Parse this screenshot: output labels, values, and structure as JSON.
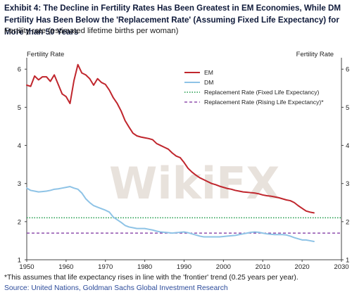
{
  "header": {
    "title": "Exhibit 4: The Decline in Fertility Rates Has Been Greatest in EM Economies, While DM Fertility Has Been Below the 'Replacement Rate' (Assuming Fixed Life Expectancy) for More than 50 Years",
    "subtitle": "Fertility rate (estimated lifetime births per woman)"
  },
  "footer": {
    "footnote": "*This assumes that life expectancy rises in line with the 'frontier' trend (0.25 years per year).",
    "source": "Source: United Nations, Goldman Sachs Global Investment Research"
  },
  "watermark": {
    "text": "WikiFX"
  },
  "colors": {
    "em": "#c0262d",
    "dm": "#8ec3e6",
    "fixed": "#1f9a4a",
    "rising": "#7a2e9e",
    "watermark": "#e8e2dc"
  },
  "chart_data": {
    "type": "line",
    "title": "",
    "ylabel_left": "Fertility Rate",
    "ylabel_right": "Fertility Rate",
    "xlim": [
      1950,
      2030
    ],
    "ylim": [
      1,
      6.3
    ],
    "xticks": [
      1950,
      1960,
      1970,
      1980,
      1990,
      2000,
      2010,
      2020,
      2030
    ],
    "yticks": [
      1,
      2,
      3,
      4,
      5,
      6
    ],
    "legend_position": "top-right",
    "series": [
      {
        "name": "EM",
        "style": "solid",
        "points": [
          [
            1950,
            5.58
          ],
          [
            1951,
            5.55
          ],
          [
            1952,
            5.82
          ],
          [
            1953,
            5.72
          ],
          [
            1954,
            5.8
          ],
          [
            1955,
            5.8
          ],
          [
            1956,
            5.68
          ],
          [
            1957,
            5.85
          ],
          [
            1958,
            5.6
          ],
          [
            1959,
            5.35
          ],
          [
            1960,
            5.28
          ],
          [
            1961,
            5.1
          ],
          [
            1962,
            5.7
          ],
          [
            1963,
            6.12
          ],
          [
            1964,
            5.9
          ],
          [
            1965,
            5.85
          ],
          [
            1966,
            5.75
          ],
          [
            1967,
            5.58
          ],
          [
            1968,
            5.75
          ],
          [
            1969,
            5.65
          ],
          [
            1970,
            5.6
          ],
          [
            1971,
            5.45
          ],
          [
            1972,
            5.25
          ],
          [
            1973,
            5.1
          ],
          [
            1974,
            4.9
          ],
          [
            1975,
            4.65
          ],
          [
            1976,
            4.48
          ],
          [
            1977,
            4.32
          ],
          [
            1978,
            4.25
          ],
          [
            1979,
            4.22
          ],
          [
            1980,
            4.2
          ],
          [
            1981,
            4.18
          ],
          [
            1982,
            4.15
          ],
          [
            1983,
            4.05
          ],
          [
            1984,
            4.0
          ],
          [
            1985,
            3.95
          ],
          [
            1986,
            3.9
          ],
          [
            1987,
            3.8
          ],
          [
            1988,
            3.72
          ],
          [
            1989,
            3.68
          ],
          [
            1990,
            3.55
          ],
          [
            1991,
            3.4
          ],
          [
            1992,
            3.3
          ],
          [
            1993,
            3.22
          ],
          [
            1994,
            3.15
          ],
          [
            1995,
            3.1
          ],
          [
            1996,
            3.05
          ],
          [
            1997,
            3.0
          ],
          [
            1998,
            2.97
          ],
          [
            1999,
            2.93
          ],
          [
            2000,
            2.9
          ],
          [
            2001,
            2.87
          ],
          [
            2002,
            2.85
          ],
          [
            2003,
            2.82
          ],
          [
            2004,
            2.8
          ],
          [
            2005,
            2.78
          ],
          [
            2006,
            2.77
          ],
          [
            2007,
            2.76
          ],
          [
            2008,
            2.75
          ],
          [
            2009,
            2.73
          ],
          [
            2010,
            2.7
          ],
          [
            2011,
            2.68
          ],
          [
            2012,
            2.67
          ],
          [
            2013,
            2.65
          ],
          [
            2014,
            2.63
          ],
          [
            2015,
            2.6
          ],
          [
            2016,
            2.57
          ],
          [
            2017,
            2.55
          ],
          [
            2018,
            2.5
          ],
          [
            2019,
            2.42
          ],
          [
            2020,
            2.35
          ],
          [
            2021,
            2.28
          ],
          [
            2022,
            2.25
          ],
          [
            2023,
            2.23
          ]
        ]
      },
      {
        "name": "DM",
        "style": "solid",
        "points": [
          [
            1950,
            2.88
          ],
          [
            1951,
            2.82
          ],
          [
            1952,
            2.8
          ],
          [
            1953,
            2.78
          ],
          [
            1954,
            2.79
          ],
          [
            1955,
            2.8
          ],
          [
            1956,
            2.82
          ],
          [
            1957,
            2.85
          ],
          [
            1958,
            2.86
          ],
          [
            1959,
            2.88
          ],
          [
            1960,
            2.9
          ],
          [
            1961,
            2.92
          ],
          [
            1962,
            2.88
          ],
          [
            1963,
            2.85
          ],
          [
            1964,
            2.75
          ],
          [
            1965,
            2.6
          ],
          [
            1966,
            2.5
          ],
          [
            1967,
            2.42
          ],
          [
            1968,
            2.38
          ],
          [
            1969,
            2.34
          ],
          [
            1970,
            2.3
          ],
          [
            1971,
            2.25
          ],
          [
            1972,
            2.12
          ],
          [
            1973,
            2.05
          ],
          [
            1974,
            1.98
          ],
          [
            1975,
            1.9
          ],
          [
            1976,
            1.86
          ],
          [
            1977,
            1.84
          ],
          [
            1978,
            1.82
          ],
          [
            1979,
            1.82
          ],
          [
            1980,
            1.82
          ],
          [
            1981,
            1.8
          ],
          [
            1982,
            1.78
          ],
          [
            1983,
            1.75
          ],
          [
            1984,
            1.73
          ],
          [
            1985,
            1.72
          ],
          [
            1986,
            1.71
          ],
          [
            1987,
            1.7
          ],
          [
            1988,
            1.71
          ],
          [
            1989,
            1.72
          ],
          [
            1990,
            1.73
          ],
          [
            1991,
            1.71
          ],
          [
            1992,
            1.68
          ],
          [
            1993,
            1.65
          ],
          [
            1994,
            1.62
          ],
          [
            1995,
            1.6
          ],
          [
            1996,
            1.6
          ],
          [
            1997,
            1.6
          ],
          [
            1998,
            1.6
          ],
          [
            1999,
            1.6
          ],
          [
            2000,
            1.61
          ],
          [
            2001,
            1.62
          ],
          [
            2002,
            1.63
          ],
          [
            2003,
            1.64
          ],
          [
            2004,
            1.66
          ],
          [
            2005,
            1.68
          ],
          [
            2006,
            1.7
          ],
          [
            2007,
            1.72
          ],
          [
            2008,
            1.73
          ],
          [
            2009,
            1.72
          ],
          [
            2010,
            1.7
          ],
          [
            2011,
            1.68
          ],
          [
            2012,
            1.67
          ],
          [
            2013,
            1.66
          ],
          [
            2014,
            1.66
          ],
          [
            2015,
            1.66
          ],
          [
            2016,
            1.65
          ],
          [
            2017,
            1.62
          ],
          [
            2018,
            1.58
          ],
          [
            2019,
            1.55
          ],
          [
            2020,
            1.52
          ],
          [
            2021,
            1.52
          ],
          [
            2022,
            1.5
          ],
          [
            2023,
            1.48
          ]
        ]
      },
      {
        "name": "Replacement Rate (Fixed Life Expectancy)",
        "style": "dotted",
        "y": 2.1
      },
      {
        "name": "Replacement Rate (Rising Life Expectancy)*",
        "style": "dashed",
        "y": 1.7
      }
    ]
  }
}
